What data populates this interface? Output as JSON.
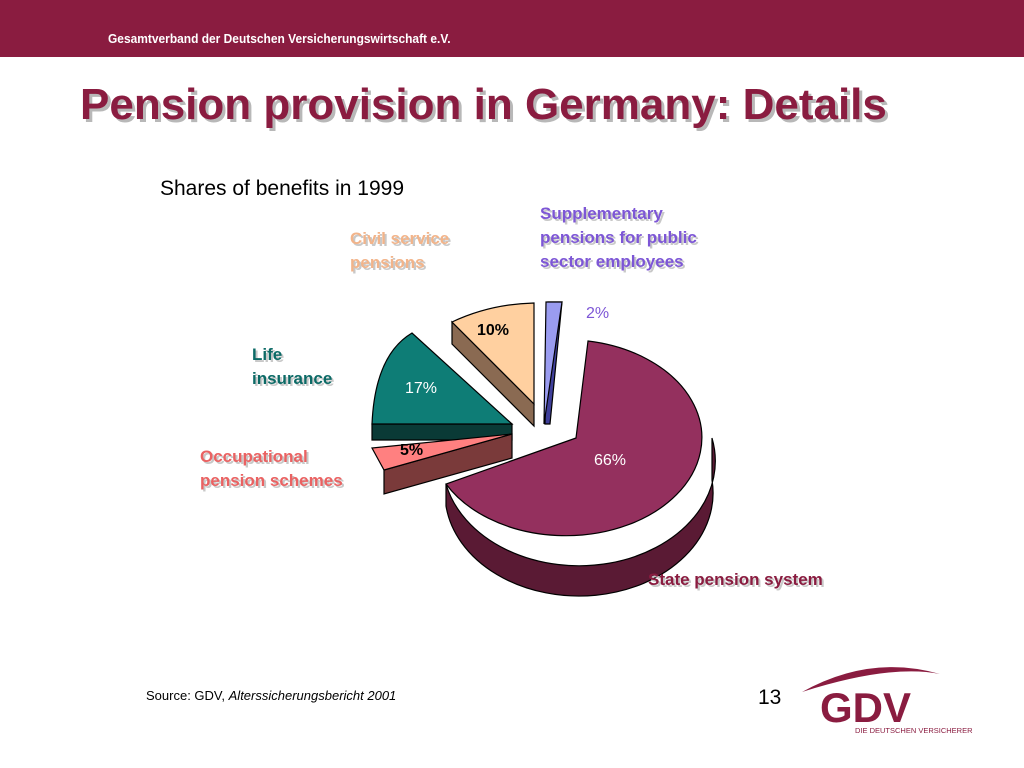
{
  "header": {
    "organization": "Gesamtverband der Deutschen Versicherungswirtschaft e.V.",
    "title": "Pension provision in Germany: Details"
  },
  "chart_data": {
    "type": "pie",
    "title": "Shares of benefits in 1999",
    "slices": [
      {
        "name": "State pension system",
        "value": 66,
        "label": "66%",
        "color": "#94305e"
      },
      {
        "name": "Supplementary\npensions for public\nsector employees",
        "value": 2,
        "label": "2%",
        "color": "#9a9cf0"
      },
      {
        "name": "Civil service\npensions",
        "value": 10,
        "label": "10%",
        "color": "#ffd0a0"
      },
      {
        "name": "Life\ninsurance",
        "value": 17,
        "label": "17%",
        "color": "#0e7d76"
      },
      {
        "name": "Occupational\npension schemes",
        "value": 5,
        "label": "5%",
        "color": "#ff8080"
      }
    ]
  },
  "footer": {
    "source_prefix": "Source: GDV,",
    "source_title": "Alterssicherungsbericht 2001",
    "page_number": "13"
  },
  "logo": {
    "text": "GDV",
    "tagline": "DIE DEUTSCHEN VERSICHERER",
    "color": "#8a1c40"
  }
}
